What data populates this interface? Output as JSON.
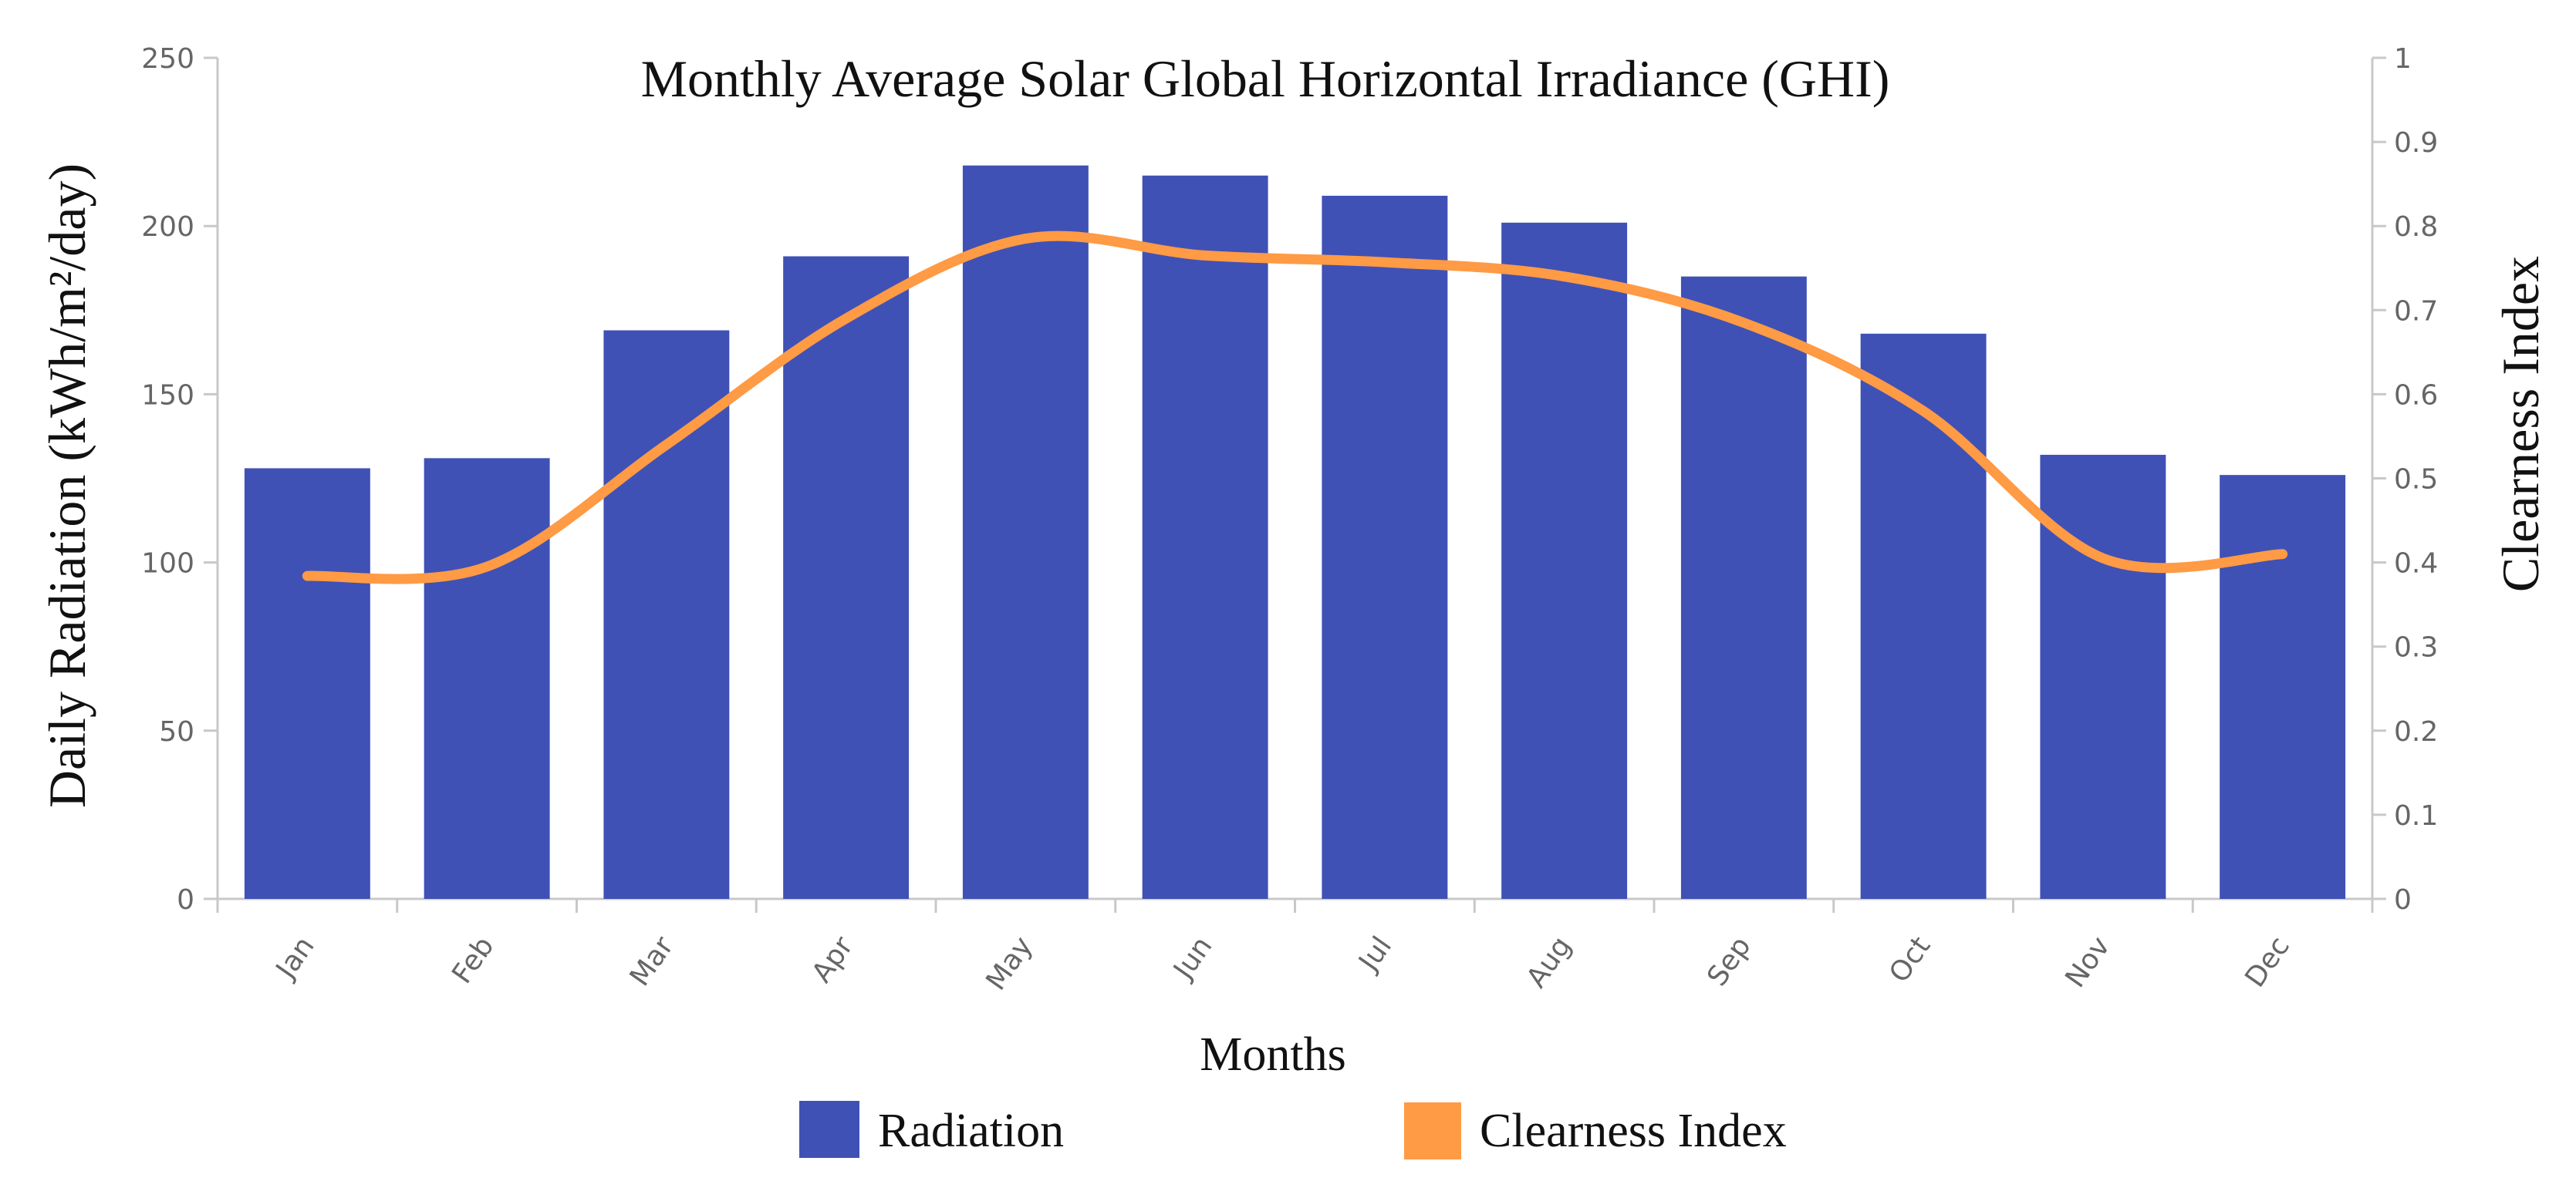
{
  "chart_data": {
    "type": "bar",
    "title": "Monthly Average Solar Global Horizontal Irradiance (GHI)",
    "xlabel": "Months",
    "ylabel": "Daily Radiation (kWh/m²/day)",
    "y2label": "Clearness Index",
    "categories": [
      "Jan",
      "Feb",
      "Mar",
      "Apr",
      "May",
      "Jun",
      "Jul",
      "Aug",
      "Sep",
      "Oct",
      "Nov",
      "Dec"
    ],
    "series": [
      {
        "name": "Radiation",
        "type": "bar",
        "axis": "left",
        "color": "#3f51b5",
        "values": [
          128,
          131,
          169,
          191,
          218,
          215,
          209,
          201,
          185,
          168,
          132,
          126
        ]
      },
      {
        "name": "Clearness Index",
        "type": "line",
        "axis": "right",
        "color": "#ff9a45",
        "values": [
          0.384,
          0.395,
          0.54,
          0.69,
          0.785,
          0.765,
          0.757,
          0.74,
          0.685,
          0.58,
          0.405,
          0.41
        ]
      }
    ],
    "ylim": [
      0,
      250
    ],
    "yticks": [
      0,
      50,
      100,
      150,
      200,
      250
    ],
    "y2lim": [
      0,
      1
    ],
    "y2ticks": [
      "0",
      "0.1",
      "0.2",
      "0.3",
      "0.4",
      "0.5",
      "0.6",
      "0.7",
      "0.8",
      "0.9",
      "1"
    ],
    "grid": false,
    "legend": "bottom-center"
  }
}
